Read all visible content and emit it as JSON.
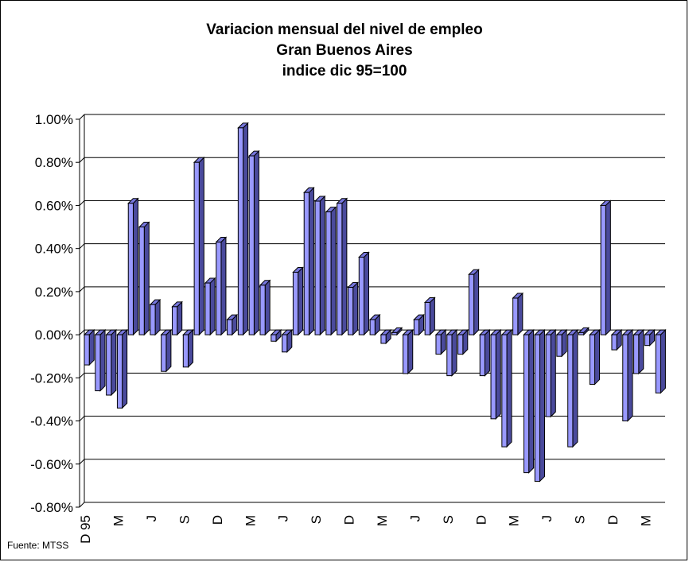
{
  "chart_data": {
    "type": "bar",
    "title_lines": [
      "Variacion mensual del nivel de empleo",
      "Gran Buenos Aires",
      "indice dic 95=100"
    ],
    "source": "Fuente: MTSS",
    "ylim": [
      -0.8,
      1.0
    ],
    "yticks": [
      -0.8,
      -0.6,
      -0.4,
      -0.2,
      0.0,
      0.2,
      0.4,
      0.6,
      0.8,
      1.0
    ],
    "ytick_labels": [
      "-0.80%",
      "-0.60%",
      "-0.40%",
      "-0.20%",
      "0.00%",
      "0.20%",
      "0.40%",
      "0.60%",
      "0.80%",
      "1.00%"
    ],
    "x_tick_labels": [
      {
        "index": 0,
        "label": "D 95"
      },
      {
        "index": 3,
        "label": "M"
      },
      {
        "index": 6,
        "label": "J"
      },
      {
        "index": 9,
        "label": "S"
      },
      {
        "index": 12,
        "label": "D"
      },
      {
        "index": 15,
        "label": "M"
      },
      {
        "index": 18,
        "label": "J"
      },
      {
        "index": 21,
        "label": "S"
      },
      {
        "index": 24,
        "label": "D"
      },
      {
        "index": 27,
        "label": "M"
      },
      {
        "index": 30,
        "label": "J"
      },
      {
        "index": 33,
        "label": "S"
      },
      {
        "index": 36,
        "label": "D"
      },
      {
        "index": 39,
        "label": "M"
      },
      {
        "index": 42,
        "label": "J"
      },
      {
        "index": 45,
        "label": "S"
      },
      {
        "index": 48,
        "label": "D"
      },
      {
        "index": 51,
        "label": "M"
      }
    ],
    "grid": true,
    "colors": {
      "bar_front": "#9999ff",
      "bar_side": "#4a4a9c",
      "bar_top": "#7777dd",
      "outline": "#000000"
    },
    "series": [
      {
        "values": [
          -0.14,
          -0.26,
          -0.28,
          -0.34,
          0.61,
          0.5,
          0.14,
          -0.17,
          0.13,
          -0.15,
          0.8,
          0.24,
          0.43,
          0.07,
          0.96,
          0.83,
          0.23,
          -0.03,
          -0.08,
          0.29,
          0.66,
          0.62,
          0.57,
          0.61,
          0.22,
          0.36,
          0.07,
          -0.04,
          0.01,
          -0.18,
          0.07,
          0.15,
          -0.09,
          -0.19,
          -0.09,
          0.28,
          -0.19,
          -0.39,
          -0.52,
          0.17,
          -0.64,
          -0.68,
          -0.38,
          -0.1,
          -0.52,
          0.01,
          -0.23,
          0.6,
          -0.07,
          -0.4,
          -0.18,
          -0.05,
          -0.27
        ]
      }
    ]
  }
}
